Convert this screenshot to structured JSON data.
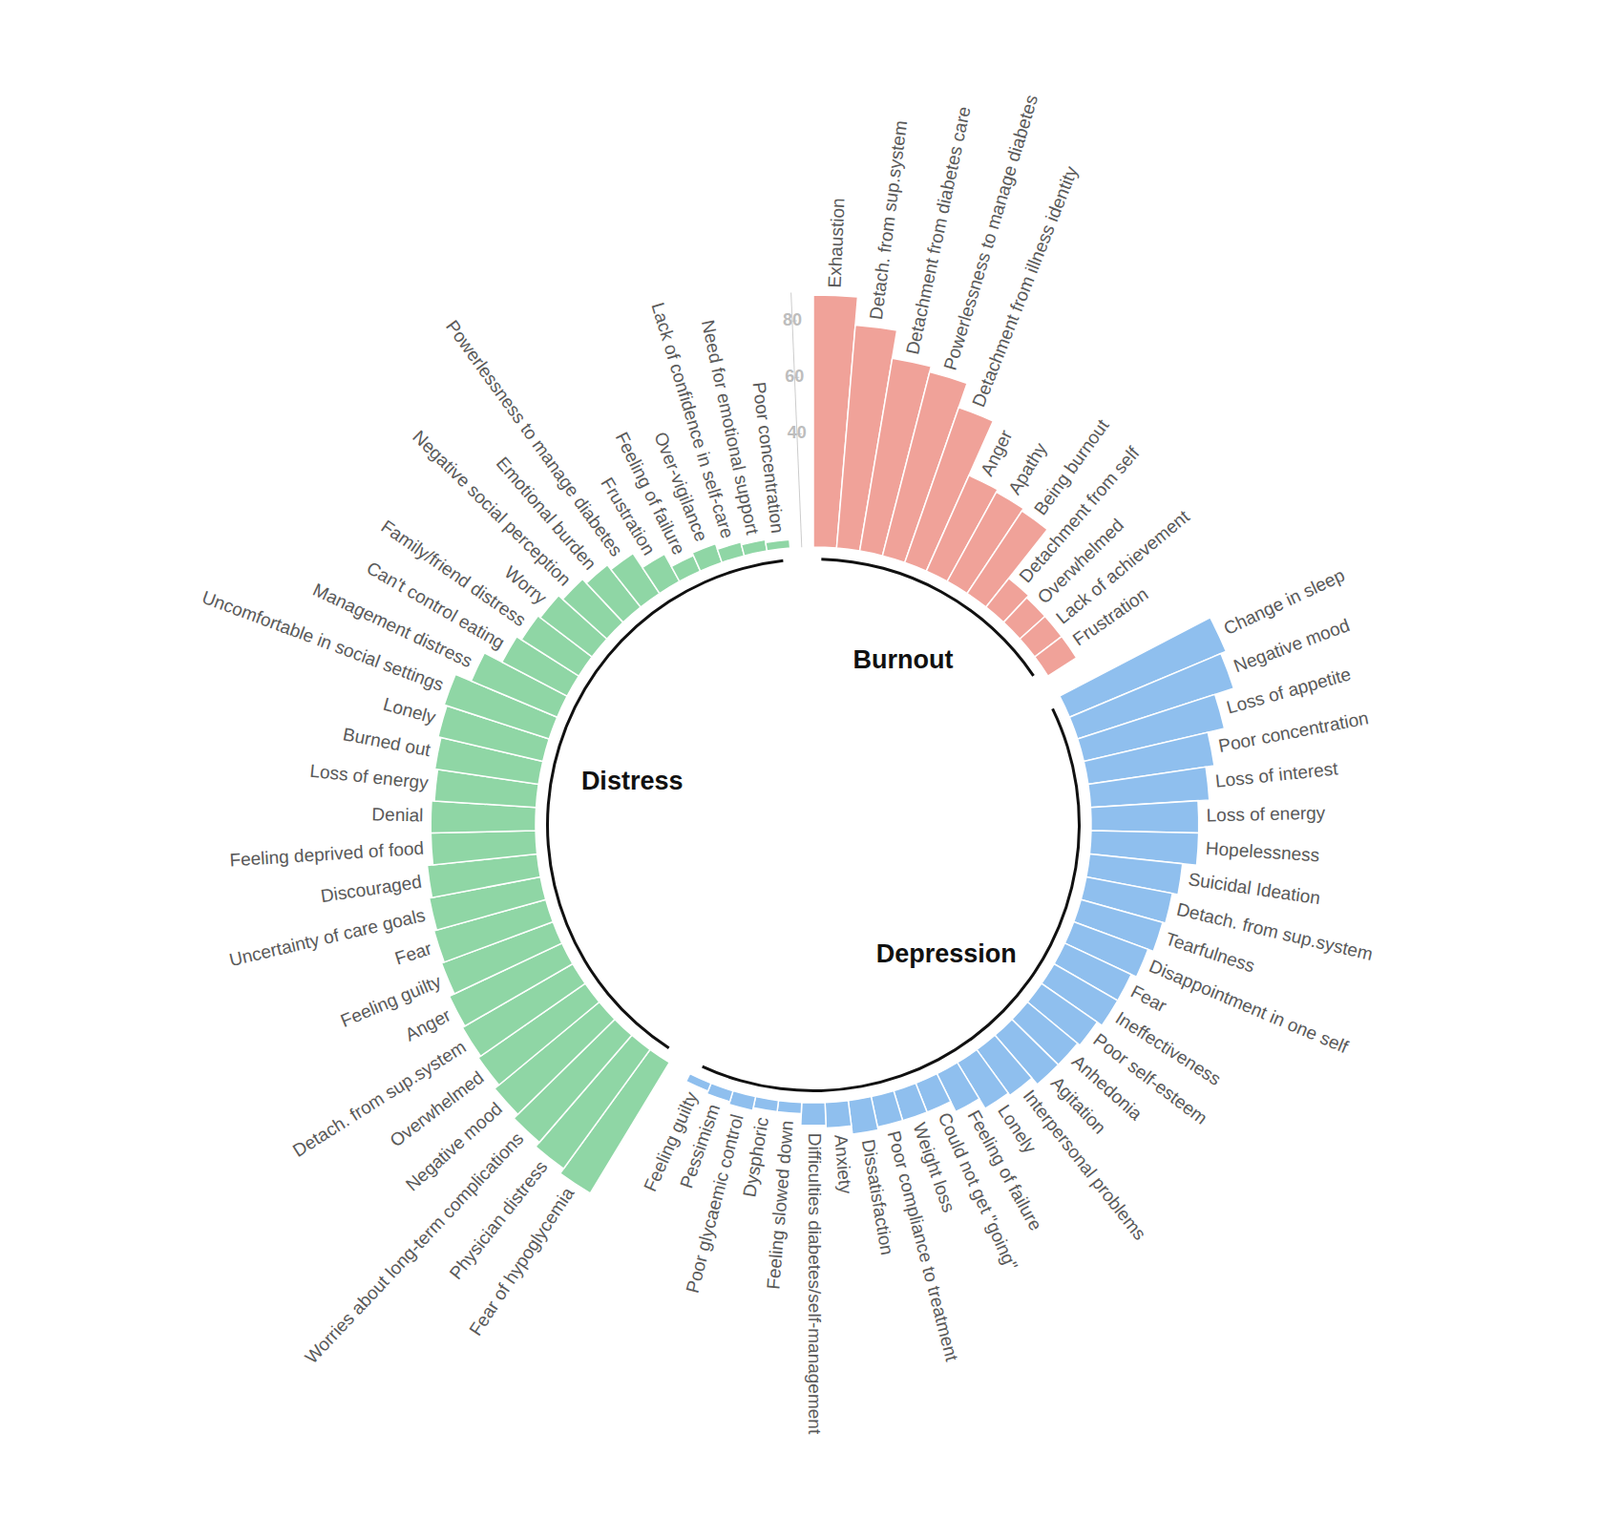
{
  "chart_data": {
    "type": "circular_bar",
    "ylim": [
      0,
      90
    ],
    "yticks": [
      40,
      60,
      80
    ],
    "series": [
      {
        "name": "Burnout",
        "color": "#f0a299",
        "categories": [
          "Exhaustion",
          "Detach. from sup.system",
          "Detachment from diabetes care",
          "Powerlessness to manage diabetes",
          "Detachment from illness identity",
          "Anger",
          "Apathy",
          "Being burnout",
          "Detachment from self",
          "Overwhelmed",
          "Lack of achievement",
          "Frustration"
        ],
        "values": [
          89,
          79,
          69,
          67,
          58,
          37,
          36,
          35,
          13,
          12,
          12,
          12
        ]
      },
      {
        "name": "Depression",
        "color": "#8fbfee",
        "categories": [
          "Change in sleep",
          "Negative mood",
          "Loss of appetite",
          "Poor concentration",
          "Loss of interest",
          "Loss of energy",
          "Hopelessness",
          "Suicidal Ideation",
          "Detach. from sup.system",
          "Tearfulness",
          "Disappointment in one self",
          "Fear",
          "Ineffectiveness",
          "Poor self-esteem",
          "Anhedonia",
          "Agitation",
          "Interpersonal problems",
          "Lonely",
          "Feeling of failure",
          "Could not get \"going\"",
          "Weight loss",
          "Poor compliance to treatment",
          "Dissatisfaction",
          "Anxiety",
          "Difficulties diabetes/self-management",
          "Feeling slowed down",
          "Dysphoric",
          "Poor glycaemic control",
          "Pessimism",
          "Feeling guilty"
        ],
        "values": [
          60,
          58,
          51,
          45,
          42,
          38,
          38,
          33,
          31,
          30,
          28,
          26,
          26,
          24,
          23,
          23,
          20,
          19,
          15,
          11,
          11,
          11,
          12,
          9,
          8,
          4,
          4,
          5,
          4,
          3
        ]
      },
      {
        "name": "Distress",
        "color": "#8fd6a5",
        "categories": [
          "Fear of hypoglycemia",
          "Physician distress",
          "Worries about long-term complications",
          "Negative mood",
          "Overwhelmed",
          "Detach. from sup.system",
          "Anger",
          "Feeling guilty",
          "Fear",
          "Uncertainty of care goals",
          "Discouraged",
          "Feeling deprived of food",
          "Denial",
          "Loss of energy",
          "Burned out",
          "Lonely",
          "Uncomfortable in social settings",
          "Management distress",
          "Can't control eating",
          "Family/friend distress",
          "Worry",
          "Negative social perception",
          "Emotional burden",
          "Powerlessness to manage diabetes",
          "Frustration",
          "Feeling of failure",
          "Over-vigilance",
          "Lack of confidence in self-care",
          "Need for emotional support",
          "Poor concentration"
        ],
        "values": [
          54,
          52,
          50,
          48,
          46,
          45,
          44,
          42,
          41,
          40,
          39,
          37,
          37,
          36,
          37,
          38,
          39,
          33,
          26,
          24,
          23,
          21,
          19,
          17,
          11,
          6,
          7,
          5,
          4,
          3
        ]
      }
    ]
  }
}
